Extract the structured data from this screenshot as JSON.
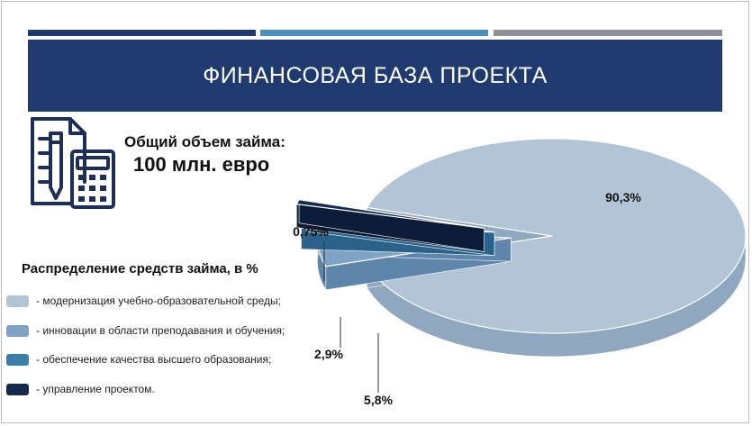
{
  "header": {
    "title": "ФИНАНСОВАЯ БАЗА ПРОЕКТА",
    "stripe_colors": [
      "#1e3a6e",
      "#4a8fbf",
      "#8e9297"
    ],
    "band_color": "#1e3a6e"
  },
  "loan": {
    "label": "Общий объем займа:",
    "amount": "100 млн. евро",
    "icon": "calculator-document-icon"
  },
  "distribution": {
    "title": "Распределение средств займа, в %"
  },
  "chart_data": {
    "type": "pie",
    "categories": [
      "- модернизация учебно-образовательной среды;",
      "- инновации в области преподавания и обучения;",
      " - обеспечение качества высшего образования;",
      "- управление проектом."
    ],
    "values": [
      90.3,
      5.8,
      2.9,
      0.75
    ],
    "labels": [
      "90,3%",
      "5,8%",
      "2,9%",
      "0,75%"
    ],
    "colors": [
      "#b2c5d6",
      "#7ea3c4",
      "#3b7eaa",
      "#162a4e"
    ],
    "side_colors": [
      "#8fa8bf",
      "#5f86aa",
      "#2a6289",
      "#0d1c38"
    ],
    "title": "Распределение средств займа, в %",
    "legend_position": "left",
    "style": "3d-exploded"
  }
}
